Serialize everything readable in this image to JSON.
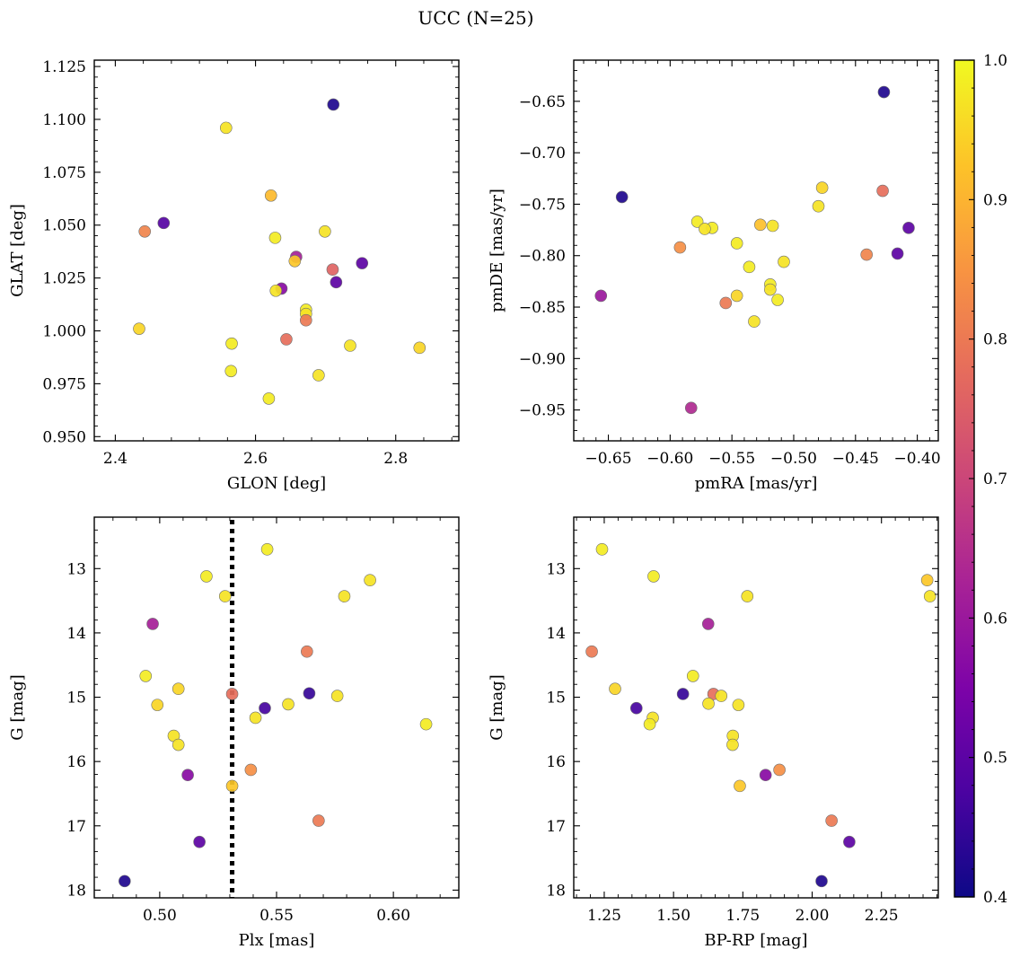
{
  "figure": {
    "suptitle": "UCC (N=25)"
  },
  "colorbar": {
    "colormap": "plasma",
    "min": 0.4,
    "max": 1.0,
    "ticks": [
      0.4,
      0.5,
      0.6,
      0.7,
      0.8,
      0.9,
      1.0
    ],
    "tick_labels": [
      "0.4",
      "0.5",
      "0.6",
      "0.7",
      "0.8",
      "0.9",
      "1.0"
    ]
  },
  "chart_data": [
    {
      "type": "scatter",
      "panel": "top-left",
      "title": "",
      "xlabel": "GLON [deg]",
      "ylabel": "GLAT [deg]",
      "xlim": [
        2.37,
        2.89
      ],
      "ylim": [
        0.948,
        1.128
      ],
      "invert_y": false,
      "xticks": [
        2.4,
        2.6,
        2.8
      ],
      "xtick_labels": [
        "2.4",
        "2.6",
        "2.8"
      ],
      "yticks": [
        0.95,
        0.975,
        1.0,
        1.025,
        1.05,
        1.075,
        1.1,
        1.125
      ],
      "ytick_labels": [
        "0.950",
        "0.975",
        "1.000",
        "1.025",
        "1.050",
        "1.075",
        "1.100",
        "1.125"
      ],
      "points": [
        {
          "x": 2.711,
          "y": 1.107,
          "c": 0.42
        },
        {
          "x": 2.558,
          "y": 1.096,
          "c": 0.97
        },
        {
          "x": 2.622,
          "y": 1.064,
          "c": 0.91
        },
        {
          "x": 2.469,
          "y": 1.051,
          "c": 0.49
        },
        {
          "x": 2.442,
          "y": 1.047,
          "c": 0.82
        },
        {
          "x": 2.699,
          "y": 1.047,
          "c": 0.97
        },
        {
          "x": 2.628,
          "y": 1.044,
          "c": 0.98
        },
        {
          "x": 2.658,
          "y": 1.035,
          "c": 0.62
        },
        {
          "x": 2.656,
          "y": 1.033,
          "c": 0.93
        },
        {
          "x": 2.752,
          "y": 1.032,
          "c": 0.5
        },
        {
          "x": 2.71,
          "y": 1.029,
          "c": 0.76
        },
        {
          "x": 2.715,
          "y": 1.023,
          "c": 0.5
        },
        {
          "x": 2.637,
          "y": 1.02,
          "c": 0.57
        },
        {
          "x": 2.629,
          "y": 1.019,
          "c": 0.97
        },
        {
          "x": 2.672,
          "y": 1.01,
          "c": 0.98
        },
        {
          "x": 2.672,
          "y": 1.008,
          "c": 0.97
        },
        {
          "x": 2.672,
          "y": 1.005,
          "c": 0.8
        },
        {
          "x": 2.434,
          "y": 1.001,
          "c": 0.95
        },
        {
          "x": 2.644,
          "y": 0.996,
          "c": 0.78
        },
        {
          "x": 2.566,
          "y": 0.994,
          "c": 0.98
        },
        {
          "x": 2.735,
          "y": 0.993,
          "c": 0.97
        },
        {
          "x": 2.834,
          "y": 0.992,
          "c": 0.95
        },
        {
          "x": 2.565,
          "y": 0.981,
          "c": 0.98
        },
        {
          "x": 2.69,
          "y": 0.979,
          "c": 0.97
        },
        {
          "x": 2.619,
          "y": 0.968,
          "c": 0.98
        }
      ]
    },
    {
      "type": "scatter",
      "panel": "top-right",
      "title": "",
      "xlabel": "pmRA [mas/yr]",
      "ylabel": "pmDE [mas/yr]",
      "xlim": [
        -0.678,
        -0.383
      ],
      "ylim": [
        -0.98,
        -0.61
      ],
      "invert_y": false,
      "xticks": [
        -0.65,
        -0.6,
        -0.55,
        -0.5,
        -0.45,
        -0.4
      ],
      "xtick_labels": [
        "−0.65",
        "−0.60",
        "−0.55",
        "−0.50",
        "−0.45",
        "−0.40"
      ],
      "yticks": [
        -0.95,
        -0.9,
        -0.85,
        -0.8,
        -0.75,
        -0.7,
        -0.65
      ],
      "ytick_labels": [
        "−0.95",
        "−0.90",
        "−0.85",
        "−0.80",
        "−0.75",
        "−0.70",
        "−0.65"
      ],
      "points": [
        {
          "x": -0.427,
          "y": -0.641,
          "c": 0.42
        },
        {
          "x": -0.477,
          "y": -0.734,
          "c": 0.95
        },
        {
          "x": -0.428,
          "y": -0.737,
          "c": 0.78
        },
        {
          "x": -0.639,
          "y": -0.743,
          "c": 0.42
        },
        {
          "x": -0.48,
          "y": -0.752,
          "c": 0.97
        },
        {
          "x": -0.578,
          "y": -0.767,
          "c": 0.98
        },
        {
          "x": -0.527,
          "y": -0.77,
          "c": 0.92
        },
        {
          "x": -0.517,
          "y": -0.771,
          "c": 0.97
        },
        {
          "x": -0.566,
          "y": -0.773,
          "c": 0.98
        },
        {
          "x": -0.572,
          "y": -0.774,
          "c": 0.97
        },
        {
          "x": -0.407,
          "y": -0.773,
          "c": 0.5
        },
        {
          "x": -0.592,
          "y": -0.792,
          "c": 0.84
        },
        {
          "x": -0.546,
          "y": -0.788,
          "c": 0.98
        },
        {
          "x": -0.416,
          "y": -0.798,
          "c": 0.5
        },
        {
          "x": -0.441,
          "y": -0.799,
          "c": 0.82
        },
        {
          "x": -0.508,
          "y": -0.806,
          "c": 0.97
        },
        {
          "x": -0.536,
          "y": -0.811,
          "c": 0.98
        },
        {
          "x": -0.519,
          "y": -0.828,
          "c": 0.98
        },
        {
          "x": -0.519,
          "y": -0.833,
          "c": 0.97
        },
        {
          "x": -0.546,
          "y": -0.839,
          "c": 0.95
        },
        {
          "x": -0.656,
          "y": -0.839,
          "c": 0.6
        },
        {
          "x": -0.513,
          "y": -0.843,
          "c": 0.98
        },
        {
          "x": -0.555,
          "y": -0.846,
          "c": 0.8
        },
        {
          "x": -0.532,
          "y": -0.864,
          "c": 0.97
        },
        {
          "x": -0.583,
          "y": -0.948,
          "c": 0.64
        }
      ]
    },
    {
      "type": "scatter",
      "panel": "bottom-left",
      "title": "",
      "xlabel": "Plx [mas]",
      "ylabel": "G [mag]",
      "xlim": [
        0.472,
        0.628
      ],
      "ylim": [
        12.2,
        18.12
      ],
      "invert_y": true,
      "xticks": [
        0.5,
        0.55,
        0.6
      ],
      "xtick_labels": [
        "0.50",
        "0.55",
        "0.60"
      ],
      "yticks": [
        13,
        14,
        15,
        16,
        17,
        18
      ],
      "ytick_labels": [
        "13",
        "14",
        "15",
        "16",
        "17",
        "18"
      ],
      "vline": {
        "x": 0.531,
        "style": "dotted",
        "color": "#000000"
      },
      "points": [
        {
          "x": 0.546,
          "y": 12.7,
          "c": 0.98
        },
        {
          "x": 0.52,
          "y": 13.12,
          "c": 0.98
        },
        {
          "x": 0.59,
          "y": 13.18,
          "c": 0.97
        },
        {
          "x": 0.528,
          "y": 13.43,
          "c": 0.97
        },
        {
          "x": 0.579,
          "y": 13.43,
          "c": 0.97
        },
        {
          "x": 0.497,
          "y": 13.86,
          "c": 0.62
        },
        {
          "x": 0.563,
          "y": 14.29,
          "c": 0.8
        },
        {
          "x": 0.494,
          "y": 14.67,
          "c": 0.98
        },
        {
          "x": 0.508,
          "y": 14.87,
          "c": 0.95
        },
        {
          "x": 0.531,
          "y": 14.95,
          "c": 0.78
        },
        {
          "x": 0.564,
          "y": 14.94,
          "c": 0.45
        },
        {
          "x": 0.576,
          "y": 14.98,
          "c": 0.97
        },
        {
          "x": 0.499,
          "y": 15.12,
          "c": 0.95
        },
        {
          "x": 0.555,
          "y": 15.11,
          "c": 0.97
        },
        {
          "x": 0.545,
          "y": 15.17,
          "c": 0.47
        },
        {
          "x": 0.541,
          "y": 15.32,
          "c": 0.97
        },
        {
          "x": 0.614,
          "y": 15.42,
          "c": 0.98
        },
        {
          "x": 0.506,
          "y": 15.6,
          "c": 0.97
        },
        {
          "x": 0.508,
          "y": 15.74,
          "c": 0.97
        },
        {
          "x": 0.539,
          "y": 16.13,
          "c": 0.84
        },
        {
          "x": 0.512,
          "y": 16.21,
          "c": 0.57
        },
        {
          "x": 0.531,
          "y": 16.38,
          "c": 0.93
        },
        {
          "x": 0.568,
          "y": 16.92,
          "c": 0.8
        },
        {
          "x": 0.517,
          "y": 17.25,
          "c": 0.5
        },
        {
          "x": 0.485,
          "y": 17.86,
          "c": 0.42
        }
      ]
    },
    {
      "type": "scatter",
      "panel": "bottom-right",
      "title": "",
      "xlabel": "BP-RP [mag]",
      "ylabel": "G [mag]",
      "xlim": [
        1.14,
        2.455
      ],
      "ylim": [
        12.2,
        18.12
      ],
      "invert_y": true,
      "xticks": [
        1.25,
        1.5,
        1.75,
        2.0,
        2.25
      ],
      "xtick_labels": [
        "1.25",
        "1.50",
        "1.75",
        "2.00",
        "2.25"
      ],
      "yticks": [
        13,
        14,
        15,
        16,
        17,
        18
      ],
      "ytick_labels": [
        "13",
        "14",
        "15",
        "16",
        "17",
        "18"
      ],
      "points": [
        {
          "x": 1.242,
          "y": 12.7,
          "c": 0.98
        },
        {
          "x": 1.428,
          "y": 13.12,
          "c": 0.98
        },
        {
          "x": 2.415,
          "y": 13.18,
          "c": 0.93
        },
        {
          "x": 2.425,
          "y": 13.43,
          "c": 0.97
        },
        {
          "x": 1.766,
          "y": 13.43,
          "c": 0.97
        },
        {
          "x": 1.625,
          "y": 13.86,
          "c": 0.62
        },
        {
          "x": 1.205,
          "y": 14.29,
          "c": 0.8
        },
        {
          "x": 1.57,
          "y": 14.67,
          "c": 0.98
        },
        {
          "x": 1.289,
          "y": 14.87,
          "c": 0.95
        },
        {
          "x": 1.534,
          "y": 14.95,
          "c": 0.45
        },
        {
          "x": 1.644,
          "y": 14.95,
          "c": 0.78
        },
        {
          "x": 1.672,
          "y": 14.98,
          "c": 0.97
        },
        {
          "x": 1.626,
          "y": 15.1,
          "c": 0.97
        },
        {
          "x": 1.734,
          "y": 15.12,
          "c": 0.97
        },
        {
          "x": 1.366,
          "y": 15.17,
          "c": 0.47
        },
        {
          "x": 1.425,
          "y": 15.32,
          "c": 0.97
        },
        {
          "x": 1.414,
          "y": 15.42,
          "c": 0.98
        },
        {
          "x": 1.714,
          "y": 15.6,
          "c": 0.97
        },
        {
          "x": 1.713,
          "y": 15.74,
          "c": 0.97
        },
        {
          "x": 1.882,
          "y": 16.13,
          "c": 0.84
        },
        {
          "x": 1.832,
          "y": 16.21,
          "c": 0.57
        },
        {
          "x": 1.739,
          "y": 16.38,
          "c": 0.93
        },
        {
          "x": 2.07,
          "y": 16.92,
          "c": 0.8
        },
        {
          "x": 2.134,
          "y": 17.25,
          "c": 0.5
        },
        {
          "x": 2.034,
          "y": 17.86,
          "c": 0.42
        }
      ]
    }
  ]
}
